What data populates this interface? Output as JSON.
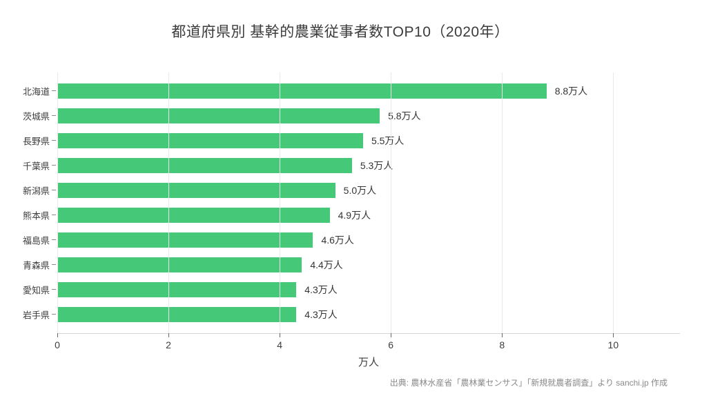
{
  "title": "都道府県別 基幹的農業従事者数TOP10（2020年）",
  "source_note": "出典: 農林水産省「農林業センサス」「新規就農者調査」より sanchi.jp 作成",
  "colors": {
    "bar": "#45c878",
    "gridline": "#e9e9e9",
    "axis_line": "#d6d6d6"
  },
  "chart_data": {
    "type": "bar",
    "orientation": "horizontal",
    "title": "都道府県別 基幹的農業従事者数TOP10（2020年）",
    "categories": [
      "北海道",
      "茨城県",
      "長野県",
      "千葉県",
      "新潟県",
      "熊本県",
      "福島県",
      "青森県",
      "愛知県",
      "岩手県"
    ],
    "values": [
      8.8,
      5.8,
      5.5,
      5.3,
      5.0,
      4.9,
      4.6,
      4.4,
      4.3,
      4.3
    ],
    "value_labels": [
      "8.8万人",
      "5.8万人",
      "5.5万人",
      "5.3万人",
      "5.0万人",
      "4.9万人",
      "4.6万人",
      "4.4万人",
      "4.3万人",
      "4.3万人"
    ],
    "xlabel": "万人",
    "ylabel": "",
    "xlim": [
      0,
      11.2
    ],
    "xticks": [
      0,
      2,
      4,
      6,
      8,
      10
    ],
    "xtick_labels": [
      "0",
      "2",
      "4",
      "6",
      "8",
      "10"
    ],
    "grid": true,
    "legend_position": "none",
    "bar_color": "#45c878",
    "unit": "万人 (tens of thousands of people)"
  }
}
